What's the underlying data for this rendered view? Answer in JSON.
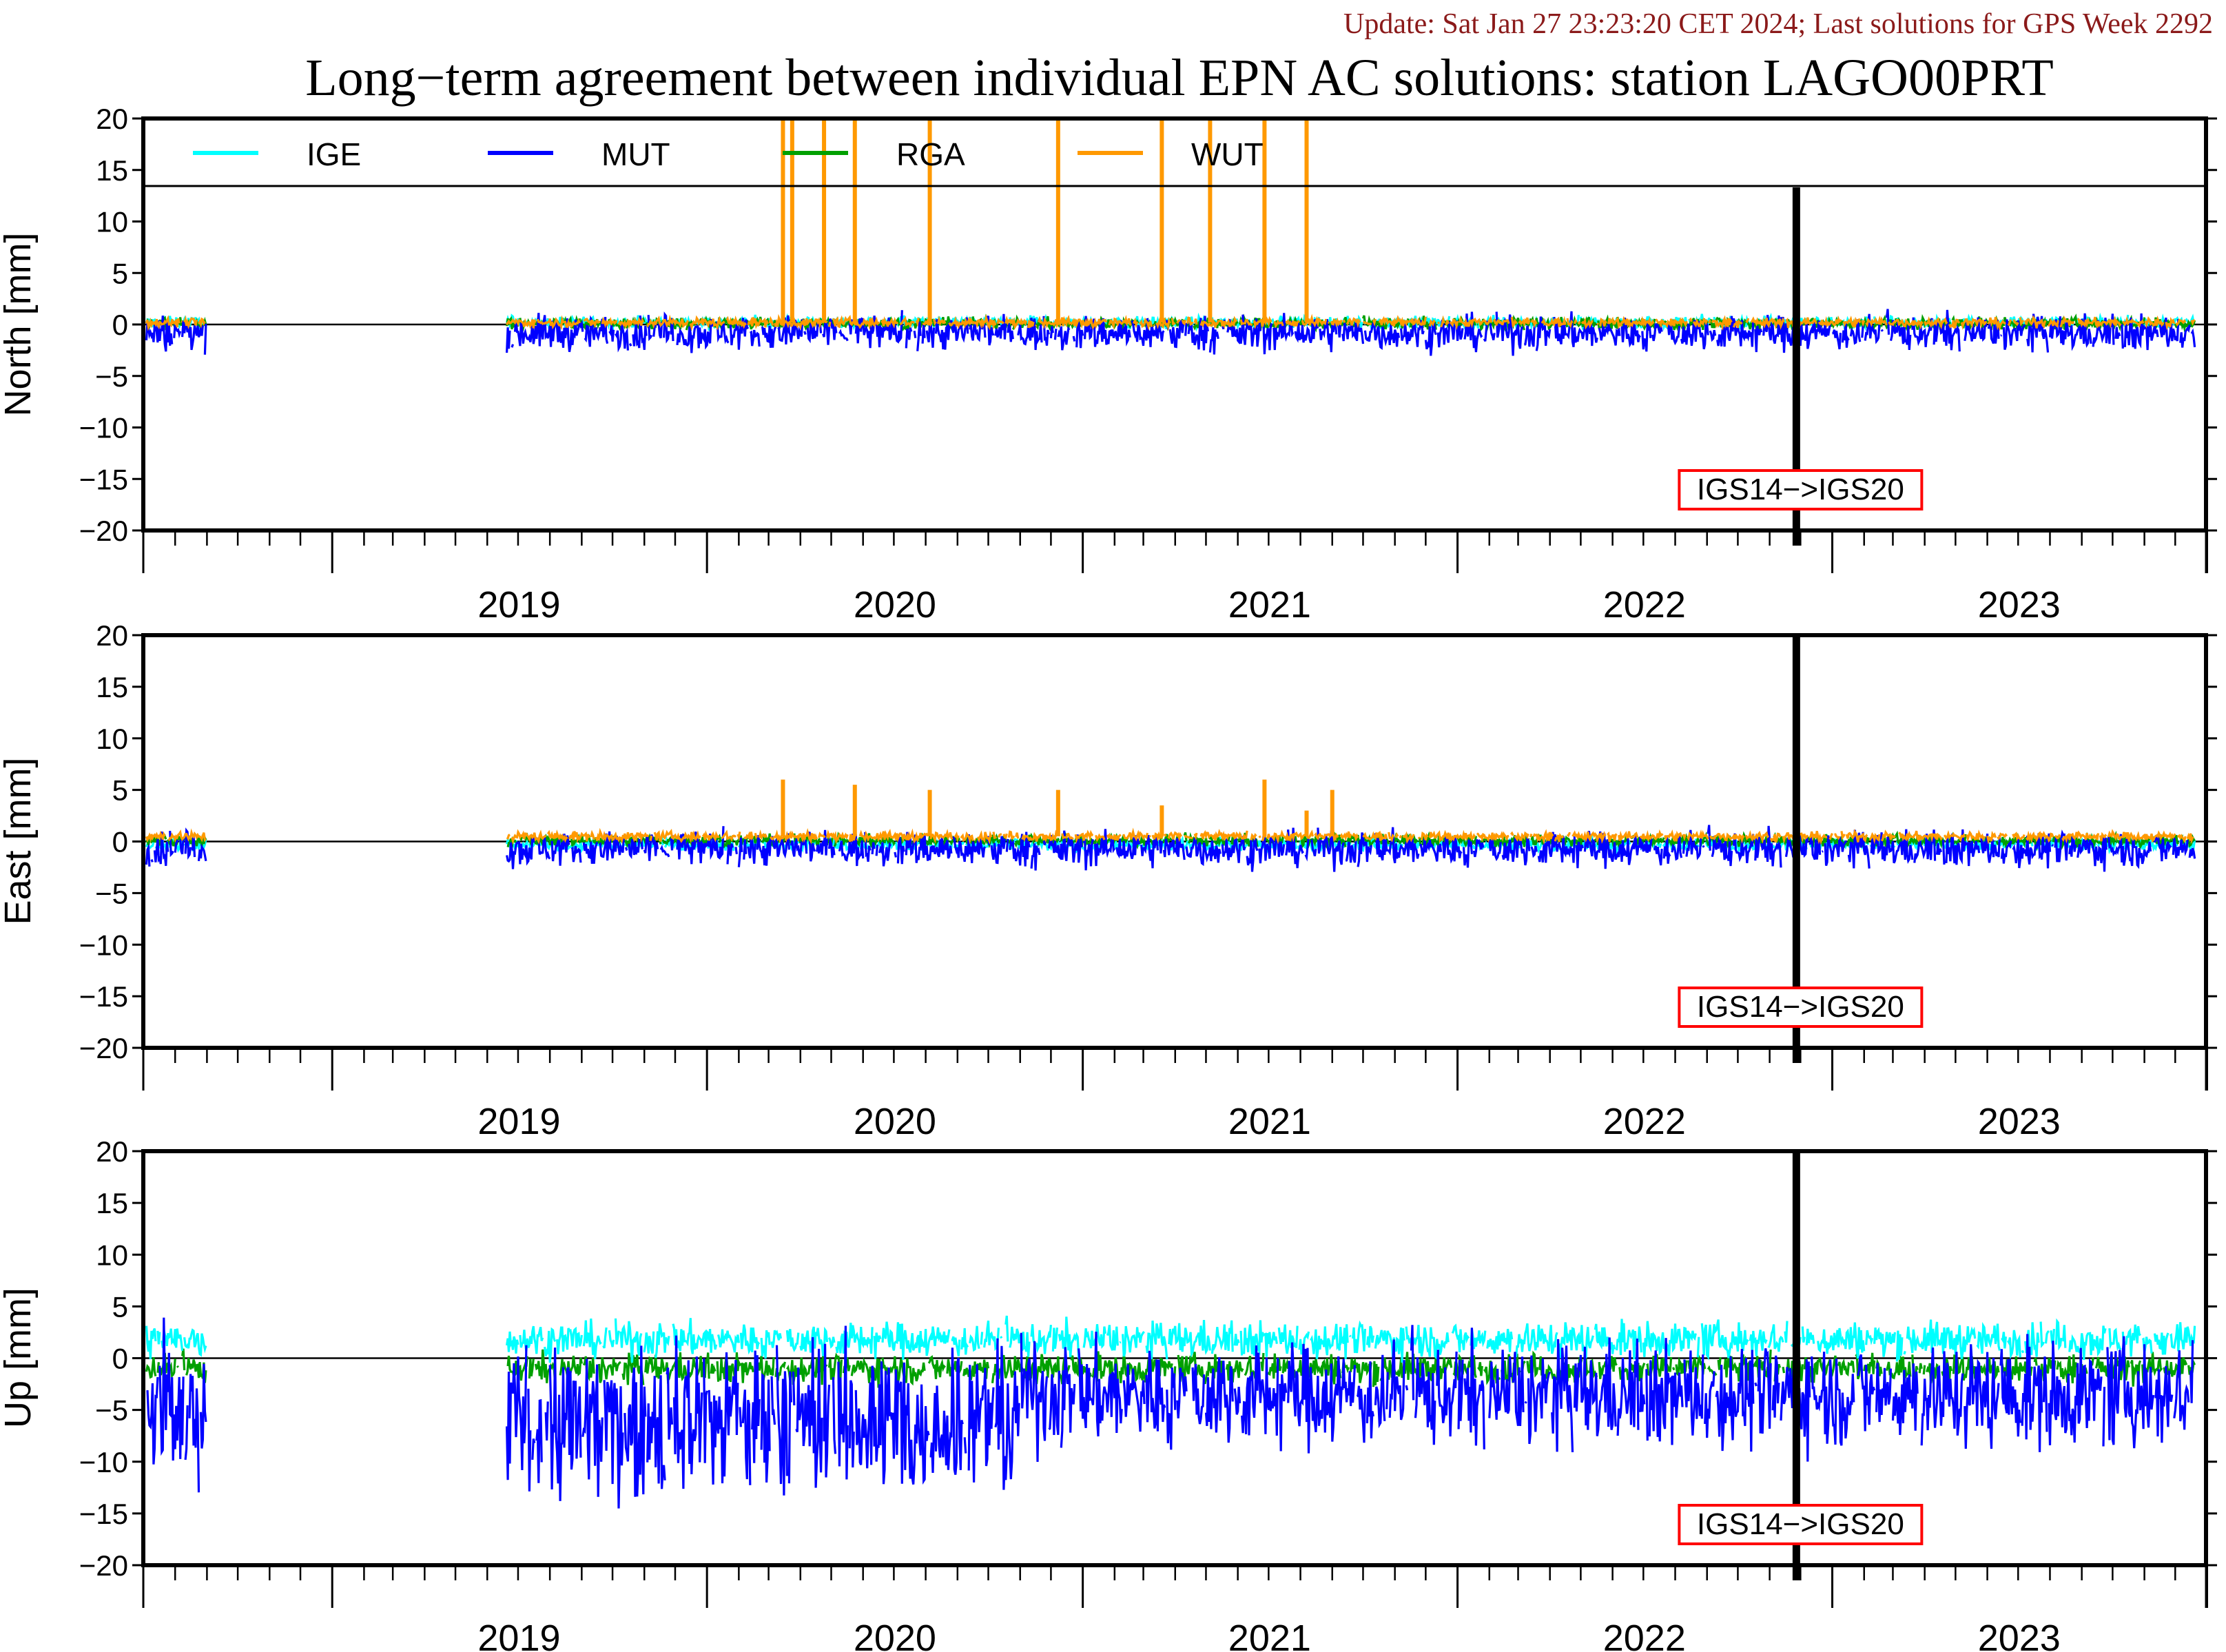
{
  "header": {
    "update_text": "Update: Sat Jan 27 23:23:20 CET 2024; Last solutions for GPS Week 2292",
    "update_color": "#8b1a1a",
    "title": "Long−term agreement between individual EPN AC solutions: station LAGO00PRT"
  },
  "legend": [
    {
      "name": "IGE",
      "color": "#00ffff"
    },
    {
      "name": "MUT",
      "color": "#0000ff"
    },
    {
      "name": "RGA",
      "color": "#00a000"
    },
    {
      "name": "WUT",
      "color": "#ff9900"
    }
  ],
  "chart_data": {
    "type": "line",
    "x_range": [
      "2018-07-01",
      "2023-12-31"
    ],
    "x_tick_labels": [
      "2019",
      "2020",
      "2021",
      "2022",
      "2023"
    ],
    "y_range": [
      -20,
      20
    ],
    "y_ticks": [
      20,
      15,
      10,
      5,
      0,
      -5,
      -10,
      -15,
      -20
    ],
    "grid": false,
    "legend_placement": "top-left (inside top panel)",
    "reference_change": {
      "label": "IGS14−>IGS20",
      "date": "2022-11-27"
    },
    "data_gaps": [
      [
        "2018-09-01",
        "2019-06-20"
      ]
    ],
    "panels": [
      {
        "ylabel": "North [mm]",
        "series": [
          {
            "name": "IGE",
            "typical_level": 0.2,
            "noise": 0.4
          },
          {
            "name": "MUT",
            "typical_level": -0.8,
            "noise": 1.2,
            "range": [
              -3.8,
              4.0
            ]
          },
          {
            "name": "RGA",
            "typical_level": 0.1,
            "noise": 0.4,
            "range": [
              -1.0,
              1.4
            ]
          },
          {
            "name": "WUT",
            "typical_level": 0.2,
            "noise": 0.3,
            "outliers": [
              {
                "date": "2020-03-15",
                "value": 20
              },
              {
                "date": "2020-03-24",
                "value": 20
              },
              {
                "date": "2020-04-24",
                "value": 20
              },
              {
                "date": "2020-05-24",
                "value": 20
              },
              {
                "date": "2020-08-05",
                "value": 20
              },
              {
                "date": "2020-12-08",
                "value": 20
              },
              {
                "date": "2021-03-19",
                "value": 20
              },
              {
                "date": "2021-05-05",
                "value": 20
              },
              {
                "date": "2021-06-27",
                "value": 20
              },
              {
                "date": "2021-08-07",
                "value": 20
              }
            ]
          }
        ]
      },
      {
        "ylabel": "East [mm]",
        "series": [
          {
            "name": "IGE",
            "typical_level": -0.3,
            "noise": 0.4
          },
          {
            "name": "MUT",
            "typical_level": -0.7,
            "noise": 1.2,
            "range": [
              -3.8,
              4.0
            ]
          },
          {
            "name": "RGA",
            "typical_level": 0.1,
            "noise": 0.4
          },
          {
            "name": "WUT",
            "typical_level": 0.5,
            "noise": 0.3,
            "outliers": [
              {
                "date": "2020-03-15",
                "value": 6
              },
              {
                "date": "2020-05-24",
                "value": 5.5
              },
              {
                "date": "2020-08-05",
                "value": 5
              },
              {
                "date": "2020-12-08",
                "value": 5
              },
              {
                "date": "2021-03-19",
                "value": 3.5
              },
              {
                "date": "2021-06-27",
                "value": 6
              },
              {
                "date": "2021-08-07",
                "value": 3
              },
              {
                "date": "2021-09-01",
                "value": 5
              }
            ]
          }
        ]
      },
      {
        "ylabel": "Up [mm]",
        "series": [
          {
            "name": "IGE",
            "typical_level": 1.8,
            "noise": 1.2,
            "range": [
              -5,
              6
            ]
          },
          {
            "name": "MUT",
            "typical_level": -3.5,
            "noise": 3.5,
            "range": [
              -12,
              8.5
            ]
          },
          {
            "name": "RGA",
            "typical_level": -1.0,
            "noise": 1.0,
            "range": [
              -7,
              3
            ]
          },
          {
            "name": "WUT",
            "typical_level": 0,
            "noise": 0
          }
        ]
      }
    ]
  }
}
